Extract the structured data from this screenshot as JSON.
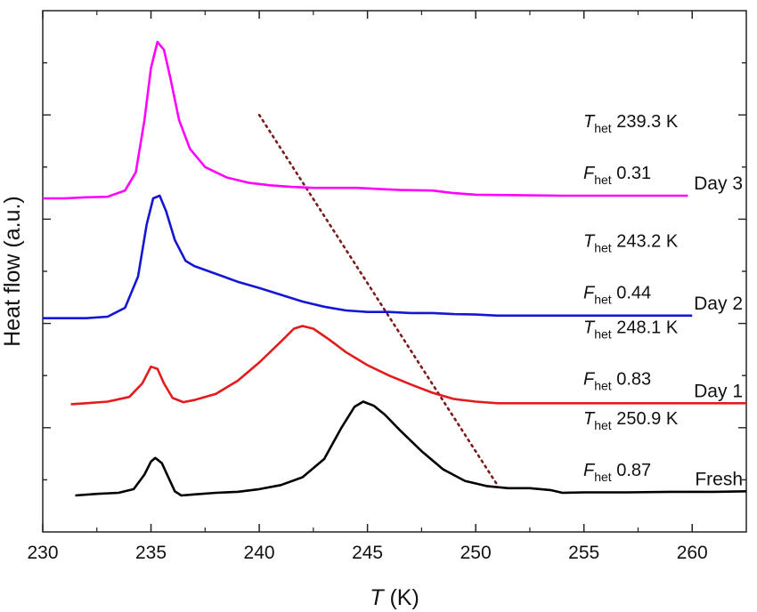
{
  "chart_data": {
    "type": "line",
    "xlabel": {
      "symbol": "T",
      "unit": " (K)"
    },
    "ylabel": "Heat flow (a.u.)",
    "xlim": [
      230,
      262.5
    ],
    "ylim": [
      0,
      10
    ],
    "xticks": [
      230,
      235,
      240,
      245,
      250,
      255,
      260
    ],
    "y_ticks_labeled": false,
    "grid": false,
    "series": [
      {
        "name": "Fresh",
        "color": "#000000",
        "offset": 0.7,
        "points": [
          [
            231.5,
            0.0
          ],
          [
            232.5,
            0.03
          ],
          [
            233.5,
            0.05
          ],
          [
            234.2,
            0.12
          ],
          [
            234.7,
            0.4
          ],
          [
            235.0,
            0.65
          ],
          [
            235.2,
            0.72
          ],
          [
            235.5,
            0.62
          ],
          [
            235.8,
            0.35
          ],
          [
            236.1,
            0.08
          ],
          [
            236.4,
            0.0
          ],
          [
            237,
            0.02
          ],
          [
            238,
            0.05
          ],
          [
            239,
            0.07
          ],
          [
            240,
            0.12
          ],
          [
            241,
            0.2
          ],
          [
            242,
            0.35
          ],
          [
            243,
            0.7
          ],
          [
            243.8,
            1.3
          ],
          [
            244.4,
            1.7
          ],
          [
            244.8,
            1.8
          ],
          [
            245.3,
            1.72
          ],
          [
            245.8,
            1.55
          ],
          [
            246.5,
            1.25
          ],
          [
            247.5,
            0.85
          ],
          [
            248.5,
            0.5
          ],
          [
            249.5,
            0.28
          ],
          [
            250.5,
            0.18
          ],
          [
            251.5,
            0.14
          ],
          [
            252.5,
            0.14
          ],
          [
            253.5,
            0.1
          ],
          [
            254,
            0.05
          ],
          [
            255,
            0.06
          ],
          [
            257,
            0.06
          ],
          [
            259,
            0.07
          ],
          [
            261,
            0.07
          ],
          [
            262.5,
            0.08
          ]
        ]
      },
      {
        "name": "Day 1",
        "color": "#e41a1c",
        "offset": 2.45,
        "points": [
          [
            231.3,
            0.0
          ],
          [
            232,
            0.02
          ],
          [
            233,
            0.05
          ],
          [
            234,
            0.14
          ],
          [
            234.6,
            0.4
          ],
          [
            235.0,
            0.72
          ],
          [
            235.3,
            0.68
          ],
          [
            235.6,
            0.4
          ],
          [
            236.0,
            0.12
          ],
          [
            236.5,
            0.04
          ],
          [
            237,
            0.08
          ],
          [
            238,
            0.2
          ],
          [
            239,
            0.45
          ],
          [
            240,
            0.8
          ],
          [
            241,
            1.2
          ],
          [
            241.6,
            1.45
          ],
          [
            242,
            1.5
          ],
          [
            242.5,
            1.45
          ],
          [
            243.2,
            1.25
          ],
          [
            244,
            1.0
          ],
          [
            245,
            0.75
          ],
          [
            246,
            0.55
          ],
          [
            247,
            0.38
          ],
          [
            248,
            0.22
          ],
          [
            249,
            0.1
          ],
          [
            250,
            0.05
          ],
          [
            251,
            0.02
          ],
          [
            252,
            0.02
          ],
          [
            255,
            0.02
          ],
          [
            258,
            0.02
          ],
          [
            262.5,
            0.02
          ]
        ]
      },
      {
        "name": "Day 2",
        "color": "#1515d4",
        "offset": 4.1,
        "points": [
          [
            230,
            0.0
          ],
          [
            231,
            0.0
          ],
          [
            232,
            0.0
          ],
          [
            233,
            0.03
          ],
          [
            233.8,
            0.2
          ],
          [
            234.4,
            0.8
          ],
          [
            234.8,
            1.8
          ],
          [
            235.1,
            2.3
          ],
          [
            235.4,
            2.35
          ],
          [
            235.7,
            2.05
          ],
          [
            236.1,
            1.5
          ],
          [
            236.6,
            1.1
          ],
          [
            237,
            1.0
          ],
          [
            238,
            0.85
          ],
          [
            239,
            0.7
          ],
          [
            240,
            0.58
          ],
          [
            241,
            0.45
          ],
          [
            242,
            0.32
          ],
          [
            243,
            0.22
          ],
          [
            244,
            0.15
          ],
          [
            245,
            0.12
          ],
          [
            246,
            0.12
          ],
          [
            247,
            0.1
          ],
          [
            248,
            0.1
          ],
          [
            249,
            0.08
          ],
          [
            250,
            0.07
          ],
          [
            251,
            0.05
          ],
          [
            253,
            0.05
          ],
          [
            256,
            0.05
          ],
          [
            258,
            0.05
          ],
          [
            260,
            0.05
          ]
        ]
      },
      {
        "name": "Day 3",
        "color": "#ff00ff",
        "offset": 6.4,
        "points": [
          [
            230,
            0.0
          ],
          [
            231,
            0.0
          ],
          [
            232,
            0.02
          ],
          [
            233,
            0.03
          ],
          [
            233.8,
            0.15
          ],
          [
            234.3,
            0.5
          ],
          [
            234.7,
            1.5
          ],
          [
            235.0,
            2.5
          ],
          [
            235.3,
            3.0
          ],
          [
            235.6,
            2.85
          ],
          [
            235.9,
            2.3
          ],
          [
            236.3,
            1.5
          ],
          [
            236.8,
            0.95
          ],
          [
            237.5,
            0.6
          ],
          [
            238.5,
            0.4
          ],
          [
            239.5,
            0.3
          ],
          [
            240.5,
            0.25
          ],
          [
            241.5,
            0.22
          ],
          [
            242.5,
            0.2
          ],
          [
            243.5,
            0.2
          ],
          [
            244.5,
            0.2
          ],
          [
            245.5,
            0.18
          ],
          [
            246.5,
            0.16
          ],
          [
            248,
            0.15
          ],
          [
            249,
            0.1
          ],
          [
            250,
            0.07
          ],
          [
            252,
            0.06
          ],
          [
            254,
            0.05
          ],
          [
            256,
            0.05
          ],
          [
            258,
            0.05
          ],
          [
            259.8,
            0.05
          ]
        ]
      }
    ],
    "trend_line": {
      "style": "dotted",
      "color": "#7a1a1a",
      "from": [
        240.0,
        8.0
      ],
      "to": [
        251.0,
        0.9
      ]
    },
    "annotations": [
      {
        "series": "Day 3",
        "T_het": "239.3 K",
        "F_het": "0.31"
      },
      {
        "series": "Day 2",
        "T_het": "243.2 K",
        "F_het": "0.44"
      },
      {
        "series": "Day 1",
        "T_het": "248.1 K",
        "F_het": "0.83"
      },
      {
        "series": "Fresh",
        "T_het": "250.9 K",
        "F_het": "0.87"
      }
    ],
    "annotation_labels": {
      "T_symbol": "T",
      "F_symbol": "F",
      "subscript": "het"
    }
  }
}
